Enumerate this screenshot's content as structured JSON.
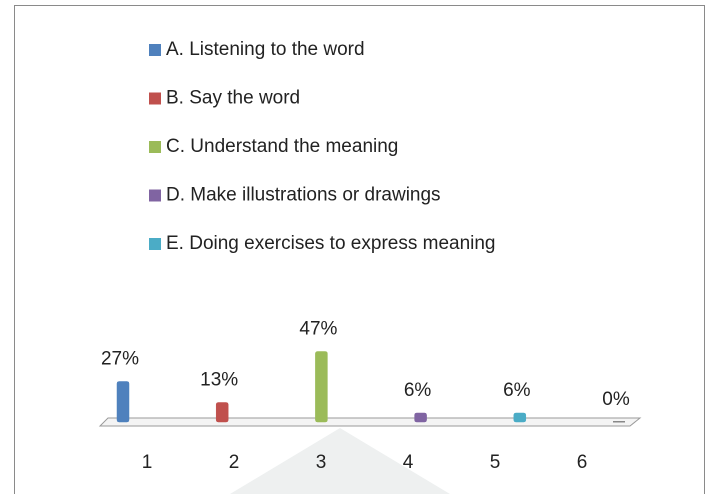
{
  "chart_data": {
    "type": "bar",
    "categories": [
      "1",
      "2",
      "3",
      "4",
      "5",
      "6"
    ],
    "values": [
      27,
      13,
      47,
      6,
      6,
      0
    ],
    "value_labels": [
      "27%",
      "13%",
      "47%",
      "6%",
      "6%",
      "0%"
    ],
    "legend": [
      {
        "name": "A. Listening to the word",
        "color": "#4f81bd"
      },
      {
        "name": "B. Say the word",
        "color": "#c0504d"
      },
      {
        "name": "C. Understand the meaning",
        "color": "#9bbb59"
      },
      {
        "name": "D. Make illustrations or drawings",
        "color": "#8064a2"
      },
      {
        "name": "E. Doing exercises to express meaning",
        "color": "#4bacc6"
      }
    ]
  }
}
